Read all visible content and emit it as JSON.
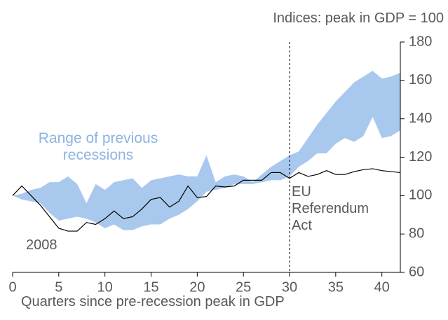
{
  "chart_data": {
    "type": "line",
    "y_label": "Indices: peak in GDP = 100",
    "x_label": "Quarters since pre-recession peak in GDP",
    "x": [
      0,
      1,
      2,
      3,
      4,
      5,
      6,
      7,
      8,
      9,
      10,
      11,
      12,
      13,
      14,
      15,
      16,
      17,
      18,
      19,
      20,
      21,
      22,
      23,
      24,
      25,
      26,
      27,
      28,
      29,
      30,
      31,
      32,
      33,
      34,
      35,
      36,
      37,
      38,
      39,
      40,
      41,
      42
    ],
    "band": {
      "name": "Range of previous recessions",
      "color": "#a9c8ee",
      "upper": [
        100,
        101,
        103,
        104,
        107,
        107,
        110,
        106,
        96,
        106,
        103,
        107,
        108,
        109,
        104,
        108,
        109,
        110,
        111,
        110,
        110,
        121,
        107,
        110,
        111,
        110,
        107,
        111,
        115,
        118,
        121,
        123,
        130,
        137,
        143,
        149,
        154,
        159,
        162,
        165,
        161,
        162,
        164
      ],
      "lower": [
        100,
        98,
        97,
        96,
        91,
        87,
        88,
        89,
        88,
        86,
        83,
        85,
        82,
        82,
        84,
        85,
        85,
        88,
        90,
        93,
        97,
        102,
        103,
        104,
        106,
        106,
        106,
        107,
        108,
        108,
        110,
        115,
        118,
        122,
        122,
        127,
        130,
        128,
        131,
        141,
        130,
        131,
        134
      ]
    },
    "series": [
      {
        "name": "2008",
        "color": "#000000",
        "values": [
          100,
          105,
          100,
          95,
          89,
          83,
          81.5,
          81.5,
          86,
          85,
          88,
          92,
          88,
          89,
          93,
          98,
          99,
          94,
          97,
          105,
          99,
          99.5,
          105,
          104.5,
          105,
          108,
          108,
          108,
          112,
          112,
          109,
          112,
          110,
          111,
          113,
          111,
          111,
          112.5,
          113.5,
          114,
          113,
          112.5,
          112
        ]
      }
    ],
    "vline": {
      "x": 30,
      "label": "EU Referendum Act"
    },
    "xlim": [
      0,
      42
    ],
    "xticks": [
      0,
      5,
      10,
      15,
      20,
      25,
      30,
      35,
      40
    ],
    "ylim": [
      60,
      180
    ],
    "yticks": [
      60,
      80,
      100,
      120,
      140,
      160,
      180
    ]
  }
}
